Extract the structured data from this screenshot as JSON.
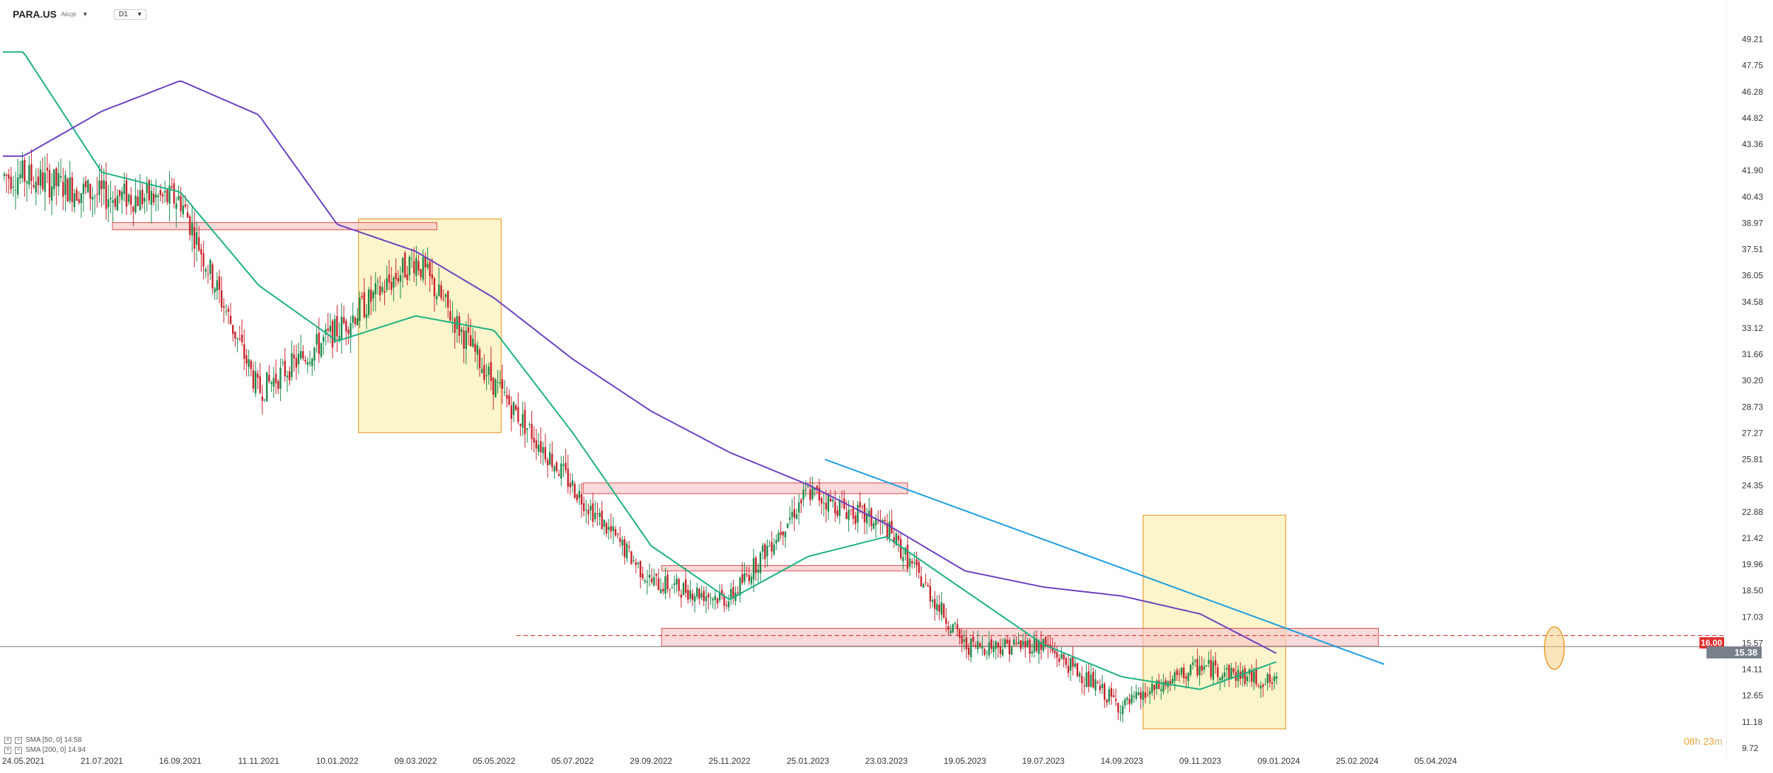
{
  "header": {
    "symbol": "PARA.US",
    "sublabel": "Akcje",
    "timeframe": "D1"
  },
  "legend": [
    {
      "label": "SMA [50, 0] 14.58",
      "color": "#1ab080"
    },
    {
      "label": "SMA [200, 0] 14.94",
      "color": "#6a3fbf"
    }
  ],
  "timer": {
    "hours": "08",
    "h": "h",
    "minutes": "23",
    "m": "m"
  },
  "price_tags": {
    "level": "16.00",
    "current": "15.38"
  },
  "chart_data": {
    "type": "candlestick",
    "title": "",
    "x_ticks": [
      "24.05.2021",
      "21.07.2021",
      "16.09.2021",
      "11.11.2021",
      "10.01.2022",
      "09.03.2022",
      "05.05.2022",
      "05.07.2022",
      "29.09.2022",
      "25.11.2022",
      "25.01.2023",
      "23.03.2023",
      "19.05.2023",
      "19.07.2023",
      "14.09.2023",
      "09.11.2023",
      "09.01.2024",
      "25.02.2024",
      "05.04.2024"
    ],
    "y_ticks": [
      "49.21",
      "47.75",
      "46.28",
      "44.82",
      "43.36",
      "41.90",
      "40.43",
      "38.97",
      "37.51",
      "36.05",
      "34.58",
      "33.12",
      "31.66",
      "30.20",
      "28.73",
      "27.27",
      "25.81",
      "24.35",
      "22.88",
      "21.42",
      "19.96",
      "18.50",
      "17.03",
      "15.57",
      "14.11",
      "12.65",
      "11.18",
      "9.72"
    ],
    "ylim": [
      9.72,
      49.21
    ],
    "price_points": [
      {
        "x": "24.05.2021",
        "y": 41.6
      },
      {
        "x": "21.07.2021",
        "y": 40.5
      },
      {
        "x": "16.09.2021",
        "y": 40.3
      },
      {
        "x": "11.11.2021",
        "y": 29.6
      },
      {
        "x": "10.01.2022",
        "y": 33.0
      },
      {
        "x": "09.03.2022",
        "y": 37.0
      },
      {
        "x": "05.05.2022",
        "y": 30.0
      },
      {
        "x": "05.07.2022",
        "y": 24.3
      },
      {
        "x": "29.09.2022",
        "y": 19.0
      },
      {
        "x": "25.11.2022",
        "y": 18.0
      },
      {
        "x": "25.01.2023",
        "y": 24.0
      },
      {
        "x": "23.03.2023",
        "y": 22.0
      },
      {
        "x": "19.05.2023",
        "y": 15.4
      },
      {
        "x": "19.07.2023",
        "y": 15.5
      },
      {
        "x": "14.09.2023",
        "y": 12.0
      },
      {
        "x": "09.11.2023",
        "y": 14.3
      },
      {
        "x": "09.01.2024",
        "y": 13.3
      }
    ],
    "series": [
      {
        "name": "SMA [50, 0] 14.58",
        "color": "#1ab080",
        "points": [
          {
            "x": "24.05.2021",
            "y": 48.5
          },
          {
            "x": "21.07.2021",
            "y": 41.8
          },
          {
            "x": "16.09.2021",
            "y": 40.7
          },
          {
            "x": "11.11.2021",
            "y": 35.5
          },
          {
            "x": "10.01.2022",
            "y": 32.4
          },
          {
            "x": "09.03.2022",
            "y": 33.8
          },
          {
            "x": "05.05.2022",
            "y": 33.0
          },
          {
            "x": "05.07.2022",
            "y": 27.3
          },
          {
            "x": "29.09.2022",
            "y": 21.0
          },
          {
            "x": "25.11.2022",
            "y": 18.0
          },
          {
            "x": "25.01.2023",
            "y": 20.4
          },
          {
            "x": "23.03.2023",
            "y": 21.5
          },
          {
            "x": "19.05.2023",
            "y": 18.5
          },
          {
            "x": "19.07.2023",
            "y": 15.5
          },
          {
            "x": "14.09.2023",
            "y": 13.7
          },
          {
            "x": "09.11.2023",
            "y": 13.0
          },
          {
            "x": "09.01.2024",
            "y": 14.58
          }
        ]
      },
      {
        "name": "SMA [200, 0] 14.94",
        "color": "#6a3fbf",
        "points": [
          {
            "x": "24.05.2021",
            "y": 42.7
          },
          {
            "x": "21.07.2021",
            "y": 45.2
          },
          {
            "x": "16.09.2021",
            "y": 46.9
          },
          {
            "x": "11.11.2021",
            "y": 45.0
          },
          {
            "x": "10.01.2022",
            "y": 38.9
          },
          {
            "x": "09.03.2022",
            "y": 37.4
          },
          {
            "x": "05.05.2022",
            "y": 34.8
          },
          {
            "x": "05.07.2022",
            "y": 31.4
          },
          {
            "x": "29.09.2022",
            "y": 28.5
          },
          {
            "x": "25.11.2022",
            "y": 26.2
          },
          {
            "x": "25.01.2023",
            "y": 24.4
          },
          {
            "x": "23.03.2023",
            "y": 22.2
          },
          {
            "x": "19.05.2023",
            "y": 19.6
          },
          {
            "x": "19.07.2023",
            "y": 18.7
          },
          {
            "x": "14.09.2023",
            "y": 18.2
          },
          {
            "x": "09.11.2023",
            "y": 17.2
          },
          {
            "x": "09.01.2024",
            "y": 14.94
          }
        ]
      }
    ],
    "trendline": {
      "color": "#1a9ee0",
      "start": {
        "x": "25.01.2023",
        "y": 25.81
      },
      "end": {
        "x": "25.02.2024",
        "y": 14.4
      }
    },
    "resistance_zones": [
      {
        "from": "21.07.2021",
        "to": "09.03.2022",
        "low": 38.6,
        "high": 39.0
      },
      {
        "from": "05.07.2022",
        "to": "23.03.2023",
        "low": 23.9,
        "high": 24.5
      },
      {
        "from": "29.09.2022",
        "to": "23.03.2023",
        "low": 19.6,
        "high": 19.9
      },
      {
        "from": "29.09.2022",
        "to": "25.02.2024",
        "low": 15.4,
        "high": 16.4
      }
    ],
    "highlight_boxes": [
      {
        "from": "10.01.2022",
        "to": "05.05.2022",
        "low": 27.3,
        "high": 39.2
      },
      {
        "from": "14.09.2023",
        "to": "09.01.2024",
        "low": 10.8,
        "high": 22.7
      }
    ],
    "horizontal_levels": [
      {
        "value": 16.0,
        "style": "dashed",
        "color": "#e03030"
      },
      {
        "value": 15.38,
        "style": "solid",
        "color": "#888888"
      }
    ]
  }
}
